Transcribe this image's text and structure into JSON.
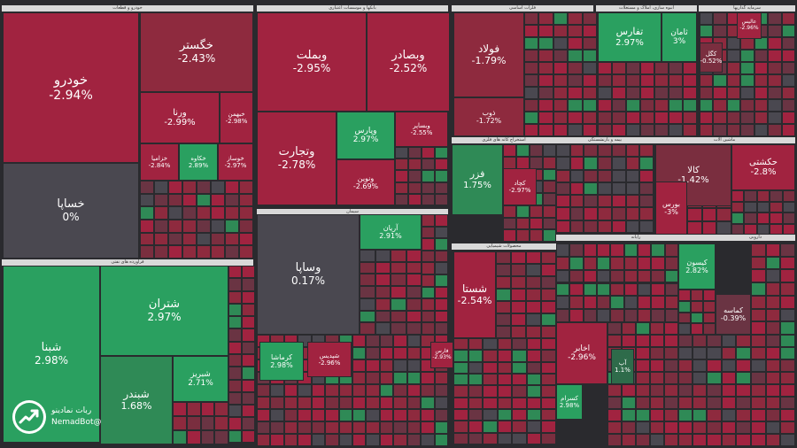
{
  "colors": {
    "red_strong": "#a12340",
    "red": "#8e2a3e",
    "red_mid": "#7a2e3f",
    "red_weak": "#6a3443",
    "neutral": "#4a4850",
    "green_weak": "#2e6b4a",
    "green": "#2f8a56",
    "green_strong": "#2aa060",
    "border": "#2a2a2e",
    "header_bg": "#d9d9d9"
  },
  "watermark": {
    "name": "ربات نمادینو",
    "handle": "@NemadBot",
    "icon": "trending-up-icon"
  },
  "sector_headers": [
    {
      "label": "خودرو و قطعات"
    },
    {
      "label": "بانکها و موسسات اعتباری"
    },
    {
      "label": "فلزات اساسی"
    },
    {
      "label": "انبوه سازی، املاک و مستغلات"
    },
    {
      "label": "سرمایه گذاریها"
    },
    {
      "label": "فرآورده های نفتی"
    },
    {
      "label": "استخراج کانه های فلزی"
    },
    {
      "label": "محصولات شیمیایی"
    },
    {
      "label": "بیمه و بازنشستگی"
    },
    {
      "label": "ماشین آلات"
    },
    {
      "label": "سیمان"
    },
    {
      "label": "رایانه"
    },
    {
      "label": "دارویی"
    }
  ],
  "chart_data": {
    "type": "heatmap",
    "title": "",
    "unit": "%",
    "labeled_tiles": [
      {
        "symbol": "خودرو",
        "change": "-2.94%",
        "value": -2.94
      },
      {
        "symbol": "خگستر",
        "change": "-2.43%",
        "value": -2.43
      },
      {
        "symbol": "ورنا",
        "change": "-2.99%",
        "value": -2.99
      },
      {
        "symbol": "خبهمن",
        "change": "-2.98%",
        "value": -2.98
      },
      {
        "symbol": "خساپا",
        "change": "0%",
        "value": 0
      },
      {
        "symbol": "خزامیا",
        "change": "-2.84%",
        "value": -2.84
      },
      {
        "symbol": "خکاوه",
        "change": "2.89%",
        "value": 2.89
      },
      {
        "symbol": "خوساز",
        "change": "-2.97%",
        "value": -2.97
      },
      {
        "symbol": "وبملت",
        "change": "-2.95%",
        "value": -2.95
      },
      {
        "symbol": "وبصادر",
        "change": "-2.52%",
        "value": -2.52
      },
      {
        "symbol": "وتجارت",
        "change": "-2.78%",
        "value": -2.78
      },
      {
        "symbol": "وپارس",
        "change": "2.97%",
        "value": 2.97
      },
      {
        "symbol": "وبساپر",
        "change": "-2.55%",
        "value": -2.55
      },
      {
        "symbol": "ونوین",
        "change": "-2.69%",
        "value": -2.69
      },
      {
        "symbol": "فولاد",
        "change": "-1.79%",
        "value": -1.79
      },
      {
        "symbol": "ذوب",
        "change": "-1.72%",
        "value": -1.72
      },
      {
        "symbol": "تفارس",
        "change": "2.97%",
        "value": 2.97
      },
      {
        "symbol": "ثامان",
        "change": "3%",
        "value": 3
      },
      {
        "symbol": "فزر",
        "change": "1.75%",
        "value": 1.75
      },
      {
        "symbol": "کالا",
        "change": "-1.42%",
        "value": -1.42
      },
      {
        "symbol": "حکشتی",
        "change": "-2.8%",
        "value": -2.8
      },
      {
        "symbol": "آریان",
        "change": "2.91%",
        "value": 2.91
      },
      {
        "symbol": "وساپا",
        "change": "0.17%",
        "value": 0.17
      },
      {
        "symbol": "بورس",
        "change": "-3%",
        "value": -3
      },
      {
        "symbol": "شبنا",
        "change": "2.98%",
        "value": 2.98
      },
      {
        "symbol": "شتران",
        "change": "2.97%",
        "value": 2.97
      },
      {
        "symbol": "شبندر",
        "change": "1.68%",
        "value": 1.68
      },
      {
        "symbol": "شبریز",
        "change": "2.71%",
        "value": 2.71
      },
      {
        "symbol": "شستا",
        "change": "-2.54%",
        "value": -2.54
      },
      {
        "symbol": "کرماشا",
        "change": "2.98%",
        "value": 2.98
      },
      {
        "symbol": "اخابر",
        "change": "-2.96%",
        "value": -2.96
      },
      {
        "symbol": "کیسون",
        "change": "2.82%",
        "value": 2.82
      },
      {
        "symbol": "کماسه",
        "change": "-0.39%",
        "value": -0.39
      },
      {
        "symbol": "کگل",
        "change": "-0.52%",
        "value": -0.52
      },
      {
        "symbol": "کچاد",
        "change": "-2.97%",
        "value": -2.97
      },
      {
        "symbol": "آپ",
        "change": "1.1%",
        "value": 1.1
      },
      {
        "symbol": "کسرام",
        "change": "2.98%",
        "value": 2.98
      },
      {
        "symbol": "شپدیس",
        "change": "-2.96%",
        "value": -2.96
      },
      {
        "symbol": "عالیس",
        "change": "-2.96%",
        "value": -2.96
      },
      {
        "symbol": "فارس",
        "change": "-2.93%",
        "value": -2.93
      }
    ]
  }
}
